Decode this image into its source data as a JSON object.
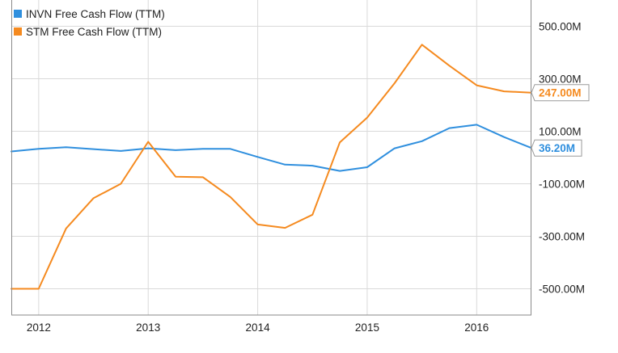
{
  "colors": {
    "invn": "#2f8fde",
    "stm": "#f58a1f",
    "grid": "#d9d9d9",
    "frame": "#8a8a8a",
    "text": "#222222"
  },
  "legend": [
    {
      "label": "INVN Free Cash Flow (TTM)",
      "color": "#2f8fde"
    },
    {
      "label": "STM Free Cash Flow (TTM)",
      "color": "#f58a1f"
    }
  ],
  "chart_data": {
    "type": "line",
    "title": "",
    "xlabel": "",
    "ylabel": "",
    "xlim": [
      2011.75,
      2016.5
    ],
    "ylim": [
      -600,
      600
    ],
    "x_ticks": [
      2012,
      2013,
      2014,
      2015,
      2016
    ],
    "x_tick_labels": [
      "2012",
      "2013",
      "2014",
      "2015",
      "2016"
    ],
    "y_ticks": [
      500,
      300,
      100,
      -100,
      -300,
      -500
    ],
    "y_tick_labels": [
      "500.00M",
      "300.00M",
      "100.00M",
      "-100.00M",
      "-300.00M",
      "-500.00M"
    ],
    "grid": true,
    "legend_position": "top-left",
    "series": [
      {
        "name": "INVN Free Cash Flow (TTM)",
        "color": "#2f8fde",
        "x": [
          2011.75,
          2012.0,
          2012.25,
          2012.5,
          2012.75,
          2013.0,
          2013.25,
          2013.5,
          2013.75,
          2014.0,
          2014.25,
          2014.5,
          2014.75,
          2015.0,
          2015.25,
          2015.5,
          2015.75,
          2016.0,
          2016.25,
          2016.5
        ],
        "y": [
          23,
          33,
          39,
          32,
          25,
          35,
          28,
          33,
          33,
          2,
          -27,
          -31,
          -51,
          -37,
          35,
          62,
          112,
          125,
          78,
          36.2
        ],
        "end_label": "36.20M"
      },
      {
        "name": "STM Free Cash Flow (TTM)",
        "color": "#f58a1f",
        "x": [
          2011.75,
          2012.0,
          2012.25,
          2012.5,
          2012.75,
          2013.0,
          2013.25,
          2013.5,
          2013.75,
          2014.0,
          2014.25,
          2014.5,
          2014.75,
          2015.0,
          2015.25,
          2015.5,
          2015.75,
          2016.0,
          2016.25,
          2016.5
        ],
        "y": [
          -500,
          -500,
          -270,
          -155,
          -100,
          60,
          -73,
          -75,
          -150,
          -255,
          -268,
          -218,
          58,
          152,
          283,
          430,
          350,
          275,
          252,
          247
        ],
        "end_label": "247.00M"
      }
    ]
  }
}
